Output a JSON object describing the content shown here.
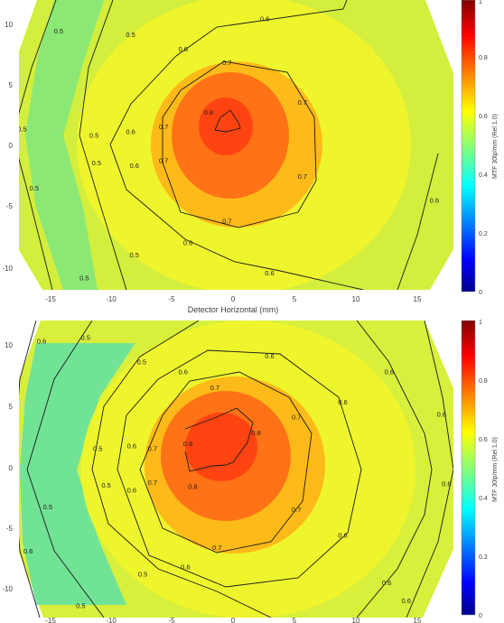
{
  "chart_data": [
    {
      "type": "heatmap",
      "title": "",
      "xlabel": "Detector Horizontal (mm)",
      "ylabel": "",
      "x_ticks": [
        -15,
        -10,
        -5,
        0,
        5,
        10,
        15
      ],
      "y_ticks": [
        10,
        5,
        0,
        -5,
        -10
      ],
      "xlim": [
        -18.5,
        18.5
      ],
      "ylim": [
        -12,
        12
      ],
      "colorbar": {
        "label": "MTF 30lp/mm (Rel 1.0)",
        "ticks": [
          "1",
          "0.8",
          "0.6",
          "0.4",
          "0.2",
          "0"
        ],
        "range": [
          0,
          1
        ]
      },
      "peak": {
        "x": 0,
        "y": 2,
        "value": 0.82
      },
      "contour_levels": [
        0.5,
        0.6,
        0.7,
        0.8
      ],
      "contour_labels": [
        {
          "text": "0.5",
          "x": -14.3,
          "y": 9.4
        },
        {
          "text": "0.5",
          "x": -8.4,
          "y": 9.1
        },
        {
          "text": "0.5",
          "x": -17.3,
          "y": 1.3
        },
        {
          "text": "0.5",
          "x": -11.4,
          "y": 0.8
        },
        {
          "text": "0.5",
          "x": -11.2,
          "y": -1.5
        },
        {
          "text": "0.5",
          "x": -16.3,
          "y": -3.6
        },
        {
          "text": "0.5",
          "x": -8.1,
          "y": -9.1
        },
        {
          "text": "0.5",
          "x": -12.2,
          "y": -11.0
        },
        {
          "text": "0.6",
          "x": 2.6,
          "y": 10.4
        },
        {
          "text": "0.6",
          "x": -4.1,
          "y": 7.9
        },
        {
          "text": "0.6",
          "x": -8.4,
          "y": 1.1
        },
        {
          "text": "0.6",
          "x": -8.1,
          "y": -1.7
        },
        {
          "text": "0.6",
          "x": -3.7,
          "y": -8.1
        },
        {
          "text": "0.6",
          "x": 3.0,
          "y": -10.6
        },
        {
          "text": "0.6",
          "x": 16.5,
          "y": -4.6
        },
        {
          "text": "0.7",
          "x": -0.5,
          "y": 6.8
        },
        {
          "text": "0.7",
          "x": 5.7,
          "y": 3.5
        },
        {
          "text": "0.7",
          "x": -5.7,
          "y": 1.5
        },
        {
          "text": "0.7",
          "x": -5.7,
          "y": -1.3
        },
        {
          "text": "0.7",
          "x": 5.7,
          "y": -2.6
        },
        {
          "text": "0.7",
          "x": -0.5,
          "y": -6.3
        },
        {
          "text": "0.8",
          "x": -2.0,
          "y": 2.7
        }
      ]
    },
    {
      "type": "heatmap",
      "title": "",
      "xlabel": "",
      "ylabel": "",
      "x_ticks": [
        -15,
        -10,
        -5,
        0,
        5,
        10,
        15
      ],
      "y_ticks": [
        10,
        5,
        0,
        -5,
        -10
      ],
      "xlim": [
        -18.5,
        18.5
      ],
      "ylim": [
        -12,
        12
      ],
      "colorbar": {
        "label": "MTF 30lp/mm (Rel 1.0)",
        "ticks": [
          "1",
          "0.8",
          "0.6",
          "0.4",
          "0.2",
          "0"
        ],
        "range": [
          0,
          1
        ]
      },
      "peak": {
        "x": 0,
        "y": 2,
        "value": 0.82
      },
      "contour_levels": [
        0.5,
        0.6,
        0.7,
        0.8
      ],
      "contour_labels": [
        {
          "text": "0.6",
          "x": -15.7,
          "y": 10.4
        },
        {
          "text": "0.5",
          "x": -12.1,
          "y": 10.7
        },
        {
          "text": "0.5",
          "x": -7.5,
          "y": 8.7
        },
        {
          "text": "0.6",
          "x": -4.1,
          "y": 7.9
        },
        {
          "text": "0.6",
          "x": 3.0,
          "y": 9.2
        },
        {
          "text": "0.6",
          "x": 12.8,
          "y": 7.9
        },
        {
          "text": "0.7",
          "x": -1.5,
          "y": 6.6
        },
        {
          "text": "0.6",
          "x": 9.0,
          "y": 5.4
        },
        {
          "text": "0.6",
          "x": 17.1,
          "y": 4.4
        },
        {
          "text": "0.7",
          "x": 5.2,
          "y": 4.2
        },
        {
          "text": "0.8",
          "x": 1.9,
          "y": 2.9
        },
        {
          "text": "0.8",
          "x": -3.7,
          "y": 2.0
        },
        {
          "text": "0.8",
          "x": -3.3,
          "y": -1.5
        },
        {
          "text": "0.6",
          "x": -8.3,
          "y": 1.8
        },
        {
          "text": "0.7",
          "x": -6.6,
          "y": 1.6
        },
        {
          "text": "0.5",
          "x": -11.1,
          "y": 1.6
        },
        {
          "text": "0.5",
          "x": -10.4,
          "y": -1.4
        },
        {
          "text": "0.6",
          "x": -8.3,
          "y": -1.8
        },
        {
          "text": "0.7",
          "x": -6.6,
          "y": -1.2
        },
        {
          "text": "0.6",
          "x": 17.5,
          "y": -1.3
        },
        {
          "text": "0.5",
          "x": -15.2,
          "y": -3.2
        },
        {
          "text": "0.7",
          "x": 5.2,
          "y": -3.4
        },
        {
          "text": "0.6",
          "x": 9.0,
          "y": -5.5
        },
        {
          "text": "0.6",
          "x": -16.8,
          "y": -6.8
        },
        {
          "text": "0.5",
          "x": -7.4,
          "y": -8.7
        },
        {
          "text": "0.7",
          "x": -1.3,
          "y": -6.5
        },
        {
          "text": "0.6",
          "x": -3.9,
          "y": -8.1
        },
        {
          "text": "0.6",
          "x": 12.6,
          "y": -9.4
        },
        {
          "text": "0.6",
          "x": 14.2,
          "y": -10.9
        },
        {
          "text": "0.5",
          "x": -12.5,
          "y": -11.3
        }
      ]
    }
  ],
  "colors": {
    "stops": [
      "#00008f",
      "#0000ff",
      "#00ffff",
      "#ffff00",
      "#ff0000",
      "#800000"
    ],
    "contour_line": "#1a1a1a",
    "axis_text": "#404040"
  }
}
